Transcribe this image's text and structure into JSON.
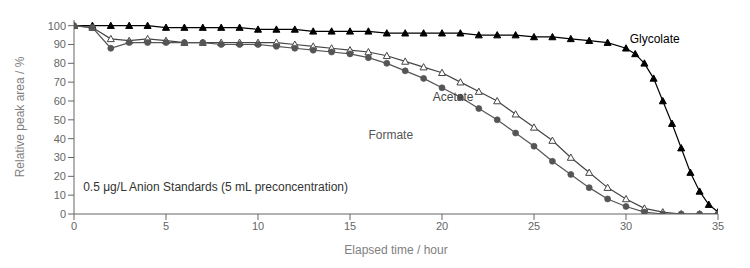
{
  "chart_data": {
    "type": "line",
    "xlabel": "Elapsed time / hour",
    "ylabel": "Relative peak area / %",
    "annotation": "0.5 μg/L Anion Standards (5 mL preconcentration)",
    "xlim": [
      0,
      35
    ],
    "ylim": [
      0,
      103
    ],
    "xticks": [
      0,
      5,
      10,
      15,
      20,
      25,
      30,
      35
    ],
    "yticks": [
      0,
      10,
      20,
      30,
      40,
      50,
      60,
      70,
      80,
      90,
      100
    ],
    "grid": false,
    "series": [
      {
        "name": "Glycolate",
        "color": "#000000",
        "marker": "triangle",
        "x": [
          0,
          1,
          2,
          3,
          4,
          5,
          6,
          7,
          8,
          9,
          10,
          11,
          12,
          13,
          14,
          15,
          16,
          17,
          18,
          19,
          20,
          21,
          22,
          23,
          24,
          25,
          26,
          27,
          28,
          29,
          30,
          30.5,
          31,
          31.5,
          32,
          32.5,
          33,
          33.5,
          34,
          34.5,
          35
        ],
        "values": [
          100,
          100,
          100,
          100,
          100,
          99,
          99,
          99,
          99,
          99,
          98,
          98,
          98,
          97,
          97,
          97,
          97,
          96,
          96,
          96,
          96,
          96,
          95,
          95,
          95,
          94,
          94,
          93,
          92,
          91,
          88,
          85,
          80,
          72,
          60,
          48,
          35,
          22,
          12,
          5,
          1
        ]
      },
      {
        "name": "Acetate",
        "color": "#444444",
        "marker": "open_triangle",
        "x": [
          0,
          1,
          2,
          3,
          4,
          5,
          6,
          7,
          8,
          9,
          10,
          11,
          12,
          13,
          14,
          15,
          16,
          17,
          18,
          19,
          20,
          21,
          22,
          23,
          24,
          25,
          26,
          27,
          28,
          29,
          30,
          31,
          32,
          33,
          34,
          35
        ],
        "values": [
          100,
          99,
          93,
          92,
          93,
          92,
          91,
          91,
          91,
          91,
          91,
          91,
          90,
          89,
          88,
          87,
          86,
          84,
          81,
          78,
          75,
          70,
          65,
          60,
          53,
          46,
          39,
          30,
          22,
          14,
          8,
          3,
          1,
          0,
          0,
          0
        ]
      },
      {
        "name": "Formate",
        "color": "#555555",
        "marker": "circle",
        "x": [
          0,
          1,
          2,
          3,
          4,
          5,
          6,
          7,
          8,
          9,
          10,
          11,
          12,
          13,
          14,
          15,
          16,
          17,
          18,
          19,
          20,
          21,
          22,
          23,
          24,
          25,
          26,
          27,
          28,
          29,
          30,
          31,
          32,
          33,
          34,
          35
        ],
        "values": [
          100,
          99,
          88,
          91,
          91,
          91,
          91,
          91,
          90,
          90,
          90,
          89,
          88,
          87,
          86,
          85,
          83,
          80,
          76,
          72,
          67,
          62,
          56,
          50,
          43,
          36,
          28,
          21,
          14,
          8,
          4,
          1,
          0,
          0,
          0,
          0
        ]
      }
    ]
  }
}
